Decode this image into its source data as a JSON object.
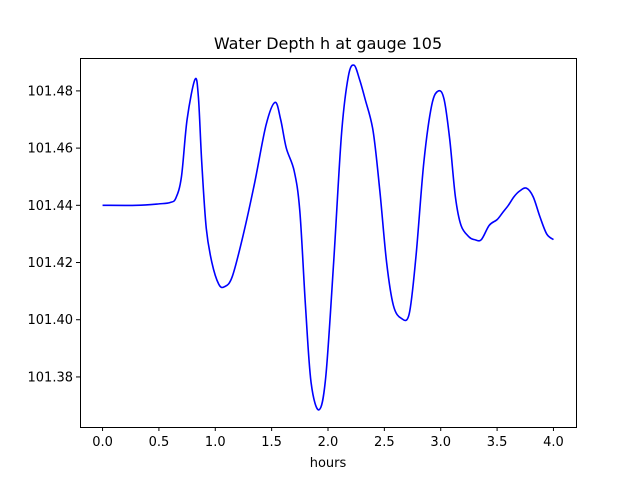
{
  "chart_data": {
    "type": "line",
    "title": "Water Depth h at gauge 105",
    "xlabel": "hours",
    "ylabel": "",
    "xlim": [
      -0.2,
      4.2
    ],
    "ylim": [
      101.3625,
      101.4915
    ],
    "xticks": [
      0.0,
      0.5,
      1.0,
      1.5,
      2.0,
      2.5,
      3.0,
      3.5,
      4.0
    ],
    "xtick_labels": [
      "0.0",
      "0.5",
      "1.0",
      "1.5",
      "2.0",
      "2.5",
      "3.0",
      "3.5",
      "4.0"
    ],
    "yticks": [
      101.38,
      101.4,
      101.42,
      101.44,
      101.46,
      101.48
    ],
    "ytick_labels": [
      "101.38",
      "101.40",
      "101.42",
      "101.44",
      "101.46",
      "101.48"
    ],
    "grid": false,
    "series": [
      {
        "color": "#0000ff",
        "points": [
          [
            0.0,
            101.44
          ],
          [
            0.3,
            101.44
          ],
          [
            0.5,
            101.4405
          ],
          [
            0.6,
            101.441
          ],
          [
            0.65,
            101.4425
          ],
          [
            0.7,
            101.45
          ],
          [
            0.75,
            101.47
          ],
          [
            0.82,
            101.484
          ],
          [
            0.85,
            101.478
          ],
          [
            0.88,
            101.455
          ],
          [
            0.92,
            101.432
          ],
          [
            0.97,
            101.42
          ],
          [
            1.03,
            101.4125
          ],
          [
            1.08,
            101.4115
          ],
          [
            1.15,
            101.415
          ],
          [
            1.25,
            101.43
          ],
          [
            1.35,
            101.448
          ],
          [
            1.45,
            101.468
          ],
          [
            1.53,
            101.476
          ],
          [
            1.58,
            101.47
          ],
          [
            1.63,
            101.46
          ],
          [
            1.7,
            101.452
          ],
          [
            1.75,
            101.438
          ],
          [
            1.8,
            101.405
          ],
          [
            1.85,
            101.378
          ],
          [
            1.92,
            101.3685
          ],
          [
            1.98,
            101.38
          ],
          [
            2.05,
            101.42
          ],
          [
            2.12,
            101.465
          ],
          [
            2.18,
            101.485
          ],
          [
            2.23,
            101.489
          ],
          [
            2.28,
            101.484
          ],
          [
            2.33,
            101.477
          ],
          [
            2.4,
            101.466
          ],
          [
            2.46,
            101.445
          ],
          [
            2.52,
            101.42
          ],
          [
            2.58,
            101.405
          ],
          [
            2.65,
            101.4005
          ],
          [
            2.72,
            101.402
          ],
          [
            2.78,
            101.422
          ],
          [
            2.85,
            101.455
          ],
          [
            2.92,
            101.475
          ],
          [
            2.98,
            101.48
          ],
          [
            3.03,
            101.477
          ],
          [
            3.08,
            101.463
          ],
          [
            3.13,
            101.443
          ],
          [
            3.18,
            101.433
          ],
          [
            3.25,
            101.429
          ],
          [
            3.3,
            101.428
          ],
          [
            3.36,
            101.428
          ],
          [
            3.43,
            101.433
          ],
          [
            3.5,
            101.435
          ],
          [
            3.55,
            101.4375
          ],
          [
            3.6,
            101.44
          ],
          [
            3.65,
            101.443
          ],
          [
            3.7,
            101.445
          ],
          [
            3.76,
            101.446
          ],
          [
            3.82,
            101.443
          ],
          [
            3.88,
            101.436
          ],
          [
            3.94,
            101.43
          ],
          [
            4.0,
            101.428
          ]
        ]
      }
    ]
  }
}
